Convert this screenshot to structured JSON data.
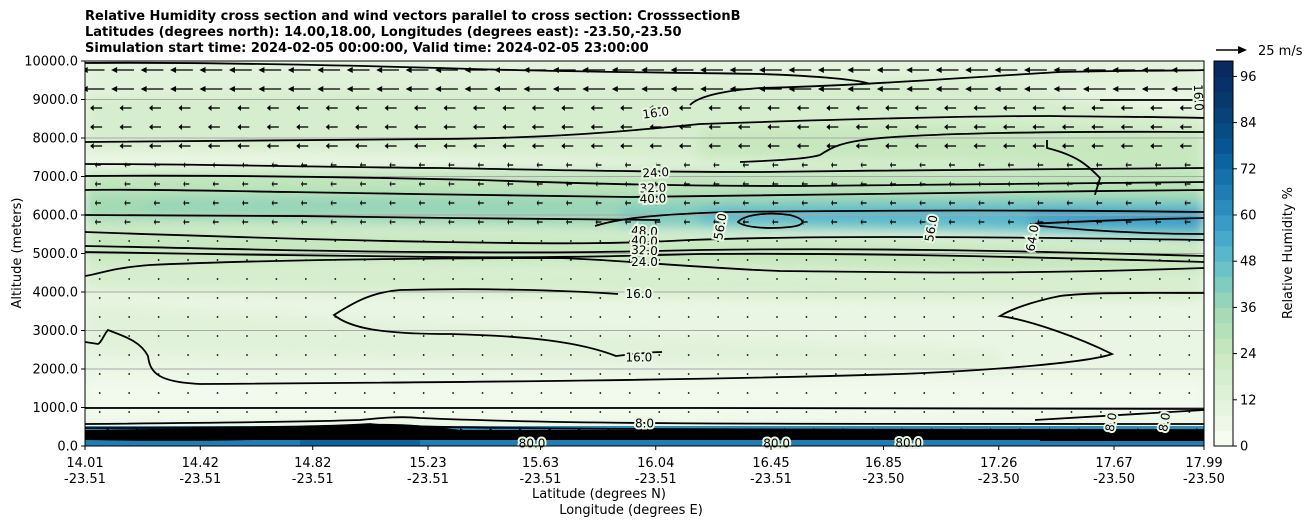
{
  "figure": {
    "title_lines": [
      "Relative Humidity cross section and wind vectors parallel to cross section: CrosssectionB",
      "Latitudes (degrees north): 14.00,18.00, Longitudes (degrees east): -23.50,-23.50",
      "Simulation start time: 2024-02-05 00:00:00, Valid time: 2024-02-05 23:00:00"
    ],
    "xlabel_lat": "Latitude (degrees N)",
    "xlabel_lon": "Longitude (degrees E)",
    "ylabel": "Altitude (meters)",
    "colorbar_label": "Relative Humidity %",
    "wind_key_label": "25 m/s"
  },
  "chart_data": {
    "type": "heatmap",
    "subtype": "filled contour cross section with line contours and wind vectors",
    "x_ticks": [
      {
        "lat": "14.01",
        "lon": "-23.51"
      },
      {
        "lat": "14.42",
        "lon": "-23.51"
      },
      {
        "lat": "14.82",
        "lon": "-23.51"
      },
      {
        "lat": "15.23",
        "lon": "-23.51"
      },
      {
        "lat": "15.63",
        "lon": "-23.51"
      },
      {
        "lat": "16.04",
        "lon": "-23.51"
      },
      {
        "lat": "16.45",
        "lon": "-23.51"
      },
      {
        "lat": "16.85",
        "lon": "-23.50"
      },
      {
        "lat": "17.26",
        "lon": "-23.50"
      },
      {
        "lat": "17.67",
        "lon": "-23.50"
      },
      {
        "lat": "17.99",
        "lon": "-23.50"
      }
    ],
    "xlim": [
      14.01,
      17.99
    ],
    "y_ticks": [
      0,
      1000,
      2000,
      3000,
      4000,
      5000,
      6000,
      7000,
      8000,
      9000,
      10000
    ],
    "y_tick_labels": [
      "0.0",
      "1000.0",
      "2000.0",
      "3000.0",
      "4000.0",
      "5000.0",
      "6000.0",
      "7000.0",
      "8000.0",
      "9000.0",
      "10000.0"
    ],
    "ylim": [
      0,
      10000
    ],
    "grid": "horizontal",
    "colorbar": {
      "range": [
        0,
        100
      ],
      "ticks": [
        0,
        12,
        24,
        36,
        48,
        60,
        72,
        84,
        96
      ],
      "step": 4,
      "colors": [
        "#f7fcf0",
        "#eef8e9",
        "#e4f4df",
        "#ddf1d6",
        "#d7eece",
        "#cfebc5",
        "#c2e6bd",
        "#b5e1b8",
        "#a6dbb6",
        "#94d4ba",
        "#80ccc0",
        "#6cc3c7",
        "#59b7cd",
        "#48a9cd",
        "#3a9bc8",
        "#2b8cbe",
        "#1f7db4",
        "#1670aa",
        "#0d62a0",
        "#085593",
        "#084c85",
        "#084278",
        "#08396b",
        "#08306b",
        "#082a60"
      ]
    },
    "contour_labels": [
      {
        "text": "16.0",
        "lat": 16.04,
        "alt": 8650,
        "rot": -8
      },
      {
        "text": "16.0",
        "lat": 17.97,
        "alt": 9050,
        "rot": 88
      },
      {
        "text": "24.0",
        "lat": 16.04,
        "alt": 7100,
        "rot": -3
      },
      {
        "text": "32.0",
        "lat": 16.03,
        "alt": 6700,
        "rot": -2
      },
      {
        "text": "40.0",
        "lat": 16.03,
        "alt": 6420,
        "rot": -2
      },
      {
        "text": "48.0",
        "lat": 16.0,
        "alt": 5580,
        "rot": 3
      },
      {
        "text": "40.0",
        "lat": 16.0,
        "alt": 5330,
        "rot": 3
      },
      {
        "text": "32.0",
        "lat": 16.0,
        "alt": 5080,
        "rot": 3
      },
      {
        "text": "56.0",
        "lat": 16.27,
        "alt": 5700,
        "rot": -80
      },
      {
        "text": "56.0",
        "lat": 17.02,
        "alt": 5650,
        "rot": -80
      },
      {
        "text": "64.0",
        "lat": 17.38,
        "alt": 5400,
        "rot": -80
      },
      {
        "text": "24.0",
        "lat": 16.0,
        "alt": 4780,
        "rot": 0
      },
      {
        "text": "16.0",
        "lat": 15.98,
        "alt": 3950,
        "rot": 0
      },
      {
        "text": "16.0",
        "lat": 15.98,
        "alt": 2300,
        "rot": 0
      },
      {
        "text": "8.0",
        "lat": 16.0,
        "alt": 580,
        "rot": 0
      },
      {
        "text": "8.0",
        "lat": 17.66,
        "alt": 620,
        "rot": -80
      },
      {
        "text": "8.0",
        "lat": 17.85,
        "alt": 620,
        "rot": -80
      },
      {
        "text": "80.0",
        "lat": 15.6,
        "alt": 60,
        "rot": 0
      },
      {
        "text": "80.0",
        "lat": 16.47,
        "alt": 60,
        "rot": 0
      },
      {
        "text": "80.0",
        "lat": 16.94,
        "alt": 80,
        "rot": 0
      }
    ]
  }
}
